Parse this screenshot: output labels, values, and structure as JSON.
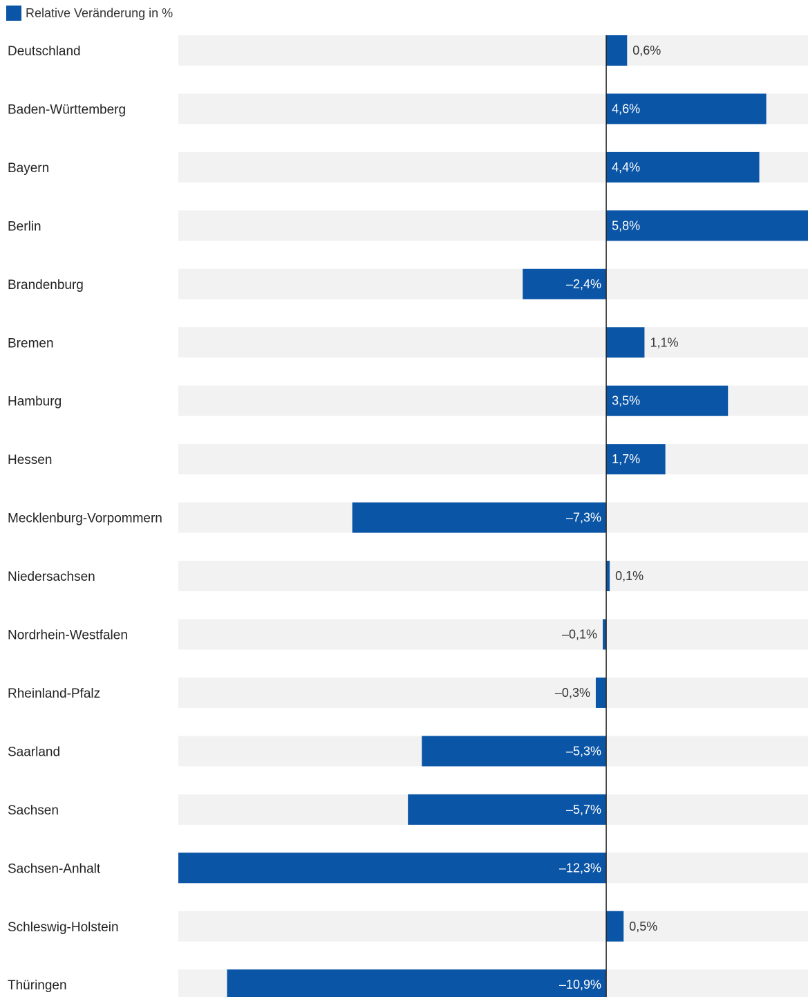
{
  "chart_data": {
    "type": "bar",
    "orientation": "horizontal",
    "legend": {
      "label": "Relative Veränderung in %",
      "color": "#0b55a6",
      "placement": "top-left"
    },
    "categories": [
      "Deutschland",
      "Baden-Württemberg",
      "Bayern",
      "Berlin",
      "Brandenburg",
      "Bremen",
      "Hamburg",
      "Hessen",
      "Mecklenburg-Vorpommern",
      "Niedersachsen",
      "Nordrhein-Westfalen",
      "Rheinland-Pfalz",
      "Saarland",
      "Sachsen",
      "Sachsen-Anhalt",
      "Schleswig-Holstein",
      "Thüringen"
    ],
    "values": [
      0.6,
      4.6,
      4.4,
      5.8,
      -2.4,
      1.1,
      3.5,
      1.7,
      -7.3,
      0.1,
      -0.1,
      -0.3,
      -5.3,
      -5.7,
      -12.3,
      0.5,
      -10.9
    ],
    "value_labels": [
      "0,6%",
      "4,6%",
      "4,4%",
      "5,8%",
      "–2,4%",
      "1,1%",
      "3,5%",
      "1,7%",
      "–7,3%",
      "0,1%",
      "–0,1%",
      "–0,3%",
      "–5,3%",
      "–5,7%",
      "–12,3%",
      "0,5%",
      "–10,9%"
    ],
    "xlim": [
      -12.3,
      5.8
    ],
    "colors": {
      "bar": "#0b55a6",
      "track": "#f2f2f2",
      "zero_line": "#222222",
      "label_inside": "#ffffff",
      "label_outside": "#333333"
    },
    "grid": false
  }
}
